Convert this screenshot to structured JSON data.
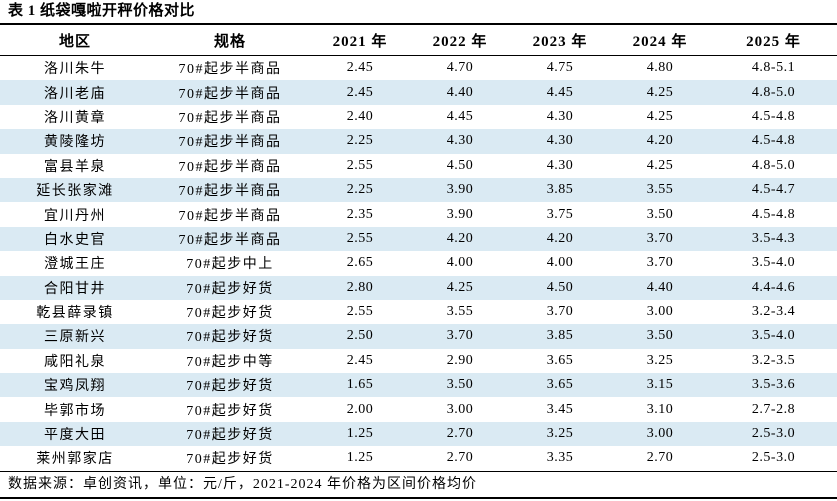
{
  "table": {
    "title": "表 1 纸袋嘎啦开秤价格对比",
    "columns": [
      "地区",
      "规格",
      "2021 年",
      "2022 年",
      "2023 年",
      "2024 年",
      "2025 年"
    ],
    "rows": [
      [
        "洛川朱牛",
        "70#起步半商品",
        "2.45",
        "4.70",
        "4.75",
        "4.80",
        "4.8-5.1"
      ],
      [
        "洛川老庙",
        "70#起步半商品",
        "2.45",
        "4.40",
        "4.45",
        "4.25",
        "4.8-5.0"
      ],
      [
        "洛川黄章",
        "70#起步半商品",
        "2.40",
        "4.45",
        "4.30",
        "4.25",
        "4.5-4.8"
      ],
      [
        "黄陵隆坊",
        "70#起步半商品",
        "2.25",
        "4.30",
        "4.30",
        "4.20",
        "4.5-4.8"
      ],
      [
        "富县羊泉",
        "70#起步半商品",
        "2.55",
        "4.50",
        "4.30",
        "4.25",
        "4.8-5.0"
      ],
      [
        "延长张家滩",
        "70#起步半商品",
        "2.25",
        "3.90",
        "3.85",
        "3.55",
        "4.5-4.7"
      ],
      [
        "宜川丹州",
        "70#起步半商品",
        "2.35",
        "3.90",
        "3.75",
        "3.50",
        "4.5-4.8"
      ],
      [
        "白水史官",
        "70#起步半商品",
        "2.55",
        "4.20",
        "4.20",
        "3.70",
        "3.5-4.3"
      ],
      [
        "澄城王庄",
        "70#起步中上",
        "2.65",
        "4.00",
        "4.00",
        "3.70",
        "3.5-4.0"
      ],
      [
        "合阳甘井",
        "70#起步好货",
        "2.80",
        "4.25",
        "4.50",
        "4.40",
        "4.4-4.6"
      ],
      [
        "乾县薛录镇",
        "70#起步好货",
        "2.55",
        "3.55",
        "3.70",
        "3.00",
        "3.2-3.4"
      ],
      [
        "三原新兴",
        "70#起步好货",
        "2.50",
        "3.70",
        "3.85",
        "3.50",
        "3.5-4.0"
      ],
      [
        "咸阳礼泉",
        "70#起步中等",
        "2.45",
        "2.90",
        "3.65",
        "3.25",
        "3.2-3.5"
      ],
      [
        "宝鸡凤翔",
        "70#起步好货",
        "1.65",
        "3.50",
        "3.65",
        "3.15",
        "3.5-3.6"
      ],
      [
        "毕郭市场",
        "70#起步好货",
        "2.00",
        "3.00",
        "3.45",
        "3.10",
        "2.7-2.8"
      ],
      [
        "平度大田",
        "70#起步好货",
        "1.25",
        "2.70",
        "3.25",
        "3.00",
        "2.5-3.0"
      ],
      [
        "莱州郭家店",
        "70#起步好货",
        "1.25",
        "2.70",
        "3.35",
        "2.70",
        "2.5-3.0"
      ]
    ],
    "footnote": "数据来源：卓创资讯，单位：元/斤，2021-2024 年价格为区间价格均价",
    "colors": {
      "stripe": "#daeaf3",
      "text": "#000000",
      "border": "#000000"
    }
  }
}
